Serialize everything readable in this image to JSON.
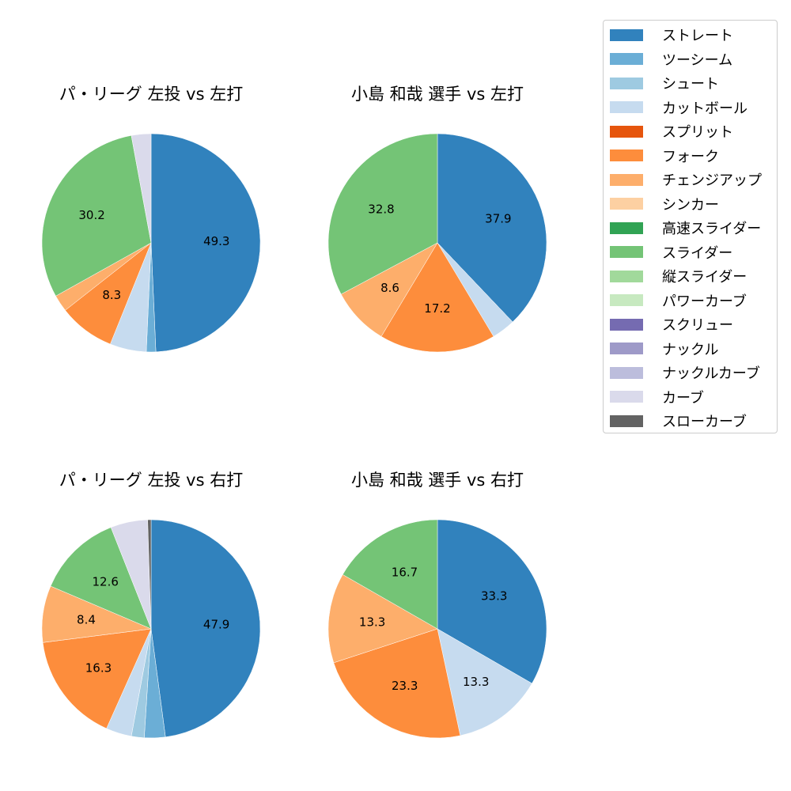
{
  "chart_data": [
    {
      "type": "pie",
      "title": "パ・リーグ 左投 vs 左打",
      "categories": [
        "ストレート",
        "ツーシーム",
        "カットボール",
        "フォーク",
        "チェンジアップ",
        "スライダー",
        "カーブ"
      ],
      "values": [
        49.3,
        1.4,
        5.4,
        8.3,
        2.5,
        30.2,
        2.9
      ],
      "labels_shown": [
        "49.3",
        "",
        "",
        "8.3",
        "",
        "30.2",
        ""
      ]
    },
    {
      "type": "pie",
      "title": "小島 和哉 選手 vs 左打",
      "categories": [
        "ストレート",
        "カットボール",
        "フォーク",
        "チェンジアップ",
        "スライダー"
      ],
      "values": [
        37.9,
        3.5,
        17.2,
        8.6,
        32.8
      ],
      "labels_shown": [
        "37.9",
        "",
        "17.2",
        "8.6",
        "32.8"
      ]
    },
    {
      "type": "pie",
      "title": "パ・リーグ 左投 vs 右打",
      "categories": [
        "ストレート",
        "ツーシーム",
        "シュート",
        "カットボール",
        "フォーク",
        "チェンジアップ",
        "スライダー",
        "カーブ",
        "スローカーブ"
      ],
      "values": [
        47.9,
        3.1,
        1.9,
        3.8,
        16.3,
        8.4,
        12.6,
        5.5,
        0.5
      ],
      "labels_shown": [
        "47.9",
        "",
        "",
        "",
        "16.3",
        "8.4",
        "12.6",
        "",
        ""
      ]
    },
    {
      "type": "pie",
      "title": "小島 和哉 選手 vs 右打",
      "categories": [
        "ストレート",
        "カットボール",
        "フォーク",
        "チェンジアップ",
        "スライダー"
      ],
      "values": [
        33.3,
        13.3,
        23.3,
        13.3,
        16.7
      ],
      "labels_shown": [
        "33.3",
        "13.3",
        "23.3",
        "13.3",
        "16.7"
      ]
    }
  ],
  "titles": {
    "top_left": "パ・リーグ 左投 vs 左打",
    "top_right": "小島 和哉 選手 vs 左打",
    "bottom_left": "パ・リーグ 左投 vs 右打",
    "bottom_right": "小島 和哉 選手 vs 右打"
  },
  "legend": {
    "items": [
      {
        "label": "ストレート",
        "color": "#3182bd"
      },
      {
        "label": "ツーシーム",
        "color": "#6baed6"
      },
      {
        "label": "シュート",
        "color": "#9ecae1"
      },
      {
        "label": "カットボール",
        "color": "#c6dbef"
      },
      {
        "label": "スプリット",
        "color": "#e6550d"
      },
      {
        "label": "フォーク",
        "color": "#fd8d3c"
      },
      {
        "label": "チェンジアップ",
        "color": "#fdae6b"
      },
      {
        "label": "シンカー",
        "color": "#fdd0a2"
      },
      {
        "label": "高速スライダー",
        "color": "#31a354"
      },
      {
        "label": "スライダー",
        "color": "#74c476"
      },
      {
        "label": "縦スライダー",
        "color": "#a1d99b"
      },
      {
        "label": "パワーカーブ",
        "color": "#c7e9c0"
      },
      {
        "label": "スクリュー",
        "color": "#756bb1"
      },
      {
        "label": "ナックル",
        "color": "#9e9ac8"
      },
      {
        "label": "ナックルカーブ",
        "color": "#bcbddc"
      },
      {
        "label": "カーブ",
        "color": "#dadaeb"
      },
      {
        "label": "スローカーブ",
        "color": "#636363"
      }
    ]
  }
}
